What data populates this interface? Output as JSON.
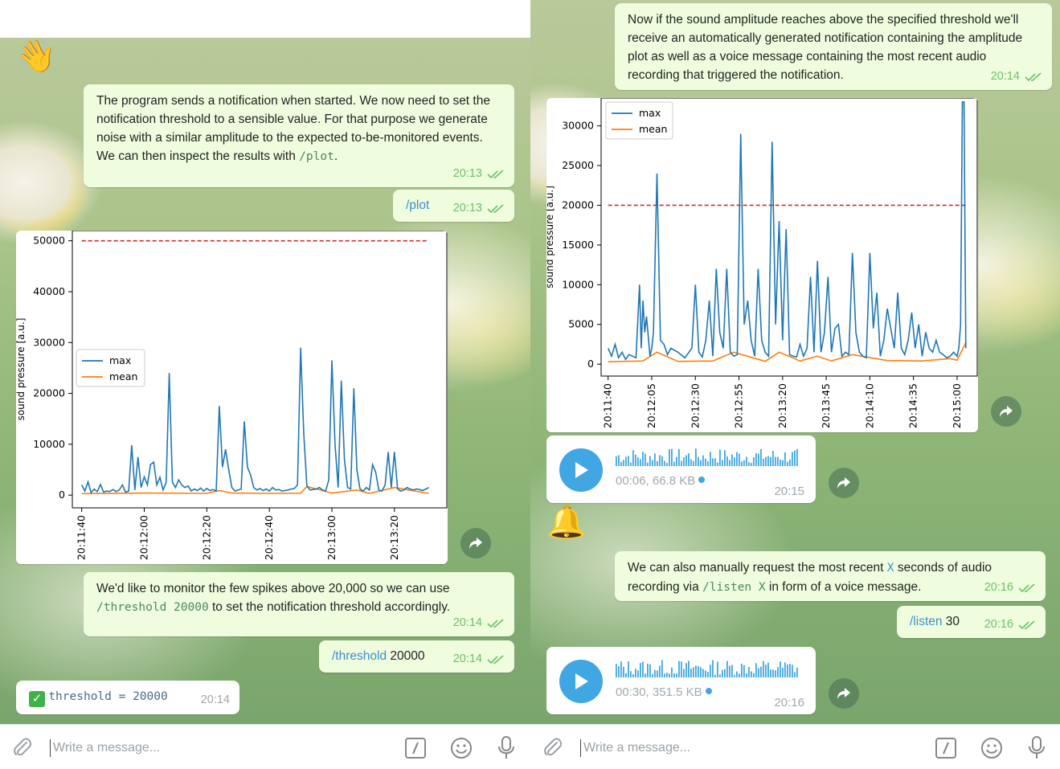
{
  "left": {
    "messages": {
      "m1_text": "The program sends a notification when started. We now need to set the notification threshold to a sensible value. For that purpose we generate noise with a similar amplitude to the expected to-be-monitored events. We can then inspect the results with ",
      "m1_cmd": "/plot",
      "m1_end": ".",
      "m1_time": "20:13",
      "m2_cmd": "/plot",
      "m2_time": "20:13",
      "m3_text": "We'd like to monitor the few spikes above 20,000 so we can use ",
      "m3_cmd": "/threshold 20000",
      "m3_end": " to set the notification threshold accordingly.",
      "m3_time": "20:14",
      "m4_cmd": "/threshold",
      "m4_arg": " 20000",
      "m4_time": "20:14",
      "m5_text": "threshold = 20000",
      "m5_time": "20:14"
    },
    "input_placeholder": "Write a message..."
  },
  "right": {
    "messages": {
      "m1_text": "Now if the sound amplitude reaches above the specified threshold we'll receive an automatically generated notification containing the amplitude plot as well as a voice message containing the most recent audio recording that triggered the notification.",
      "m1_time": "20:14",
      "voice1_info": "00:06, 66.8 KB",
      "voice1_time": "20:15",
      "m2_text_a": "We can also manually request the most recent ",
      "m2_x": "X",
      "m2_text_b": " seconds of audio recording via ",
      "m2_cmd": "/listen X",
      "m2_text_c": " in form of a voice message.",
      "m2_time": "20:16",
      "m3_cmd": "/listen",
      "m3_arg": " 30",
      "m3_time": "20:16",
      "voice2_info": "00:30, 351.5 KB",
      "voice2_time": "20:16"
    },
    "input_placeholder": "Write a message..."
  },
  "icons": [
    "waving-hand-icon",
    "bell-icon",
    "check-mark-icon",
    "share-icon",
    "play-icon",
    "attach-icon",
    "command-icon",
    "smile-icon",
    "mic-icon",
    "double-check-icon"
  ],
  "colors": {
    "outgoing_bubble": "#effdde",
    "time_green": "#6cbf6a",
    "link_blue": "#3a8fd0",
    "play_blue": "#40a7e3",
    "series_max": "#1f77b4",
    "series_mean": "#ff7f0e",
    "threshold": "#d62728"
  },
  "chart_data": [
    {
      "type": "line",
      "ylabel": "sound pressure [a.u.]",
      "ylim": [
        -2500,
        52000
      ],
      "yticks": [
        0,
        10000,
        20000,
        30000,
        40000,
        50000
      ],
      "ytick_labels": [
        "0",
        "10000",
        "20000",
        "30000",
        "40000",
        "50000"
      ],
      "xtick_labels": [
        "20:11:40",
        "20:12:00",
        "20:12:20",
        "20:12:40",
        "20:13:00",
        "20:13:20"
      ],
      "xlim_seconds": [
        -3,
        117
      ],
      "legend": {
        "position": "center-left",
        "entries": [
          "max",
          "mean"
        ]
      },
      "threshold_line": 50000,
      "series": [
        {
          "name": "max",
          "x": [
            0,
            1,
            2,
            3,
            4,
            5,
            6,
            7,
            8,
            9,
            10,
            11,
            12,
            13,
            14,
            15,
            16,
            17,
            18,
            19,
            20,
            21,
            22,
            23,
            24,
            25,
            26,
            27,
            28,
            29,
            30,
            31,
            32,
            33,
            34,
            35,
            36,
            37,
            38,
            39,
            40,
            41,
            42,
            43,
            44,
            45,
            46,
            47,
            48,
            49,
            50,
            51,
            52,
            53,
            54,
            55,
            56,
            57,
            58,
            59,
            60,
            61,
            62,
            63,
            64,
            65,
            66,
            67,
            68,
            69,
            70,
            71,
            72,
            73,
            74,
            75,
            76,
            77,
            78,
            79,
            80,
            81,
            82,
            83,
            84,
            85,
            86,
            87,
            88,
            89,
            90,
            91,
            92,
            93,
            94,
            95,
            96,
            97,
            98,
            99,
            100,
            101,
            102,
            103,
            104,
            105,
            106,
            107,
            108,
            109,
            110,
            111
          ],
          "y": [
            2000,
            800,
            2600,
            500,
            1200,
            700,
            2100,
            600,
            800,
            700,
            1100,
            700,
            1000,
            2000,
            600,
            800,
            9800,
            1000,
            7500,
            1500,
            3600,
            2000,
            6000,
            6500,
            2000,
            3500,
            1000,
            2500,
            24000,
            2500,
            1500,
            3000,
            2000,
            1500,
            1800,
            800,
            1200,
            900,
            1400,
            800,
            1300,
            900,
            1100,
            800,
            17500,
            5500,
            9000,
            5000,
            1500,
            800,
            1000,
            1200,
            14500,
            5500,
            4000,
            1500,
            1000,
            1300,
            900,
            1200,
            800,
            1500,
            1000,
            1100,
            800,
            900,
            1000,
            1200,
            1300,
            2000,
            29000,
            12000,
            1800,
            1000,
            1100,
            1200,
            1500,
            1000,
            800,
            3000,
            26500,
            10000,
            1500,
            22500,
            7000,
            1500,
            1200,
            21000,
            5000,
            1200,
            800,
            1500,
            1000,
            6000,
            4500,
            1000,
            800,
            2000,
            8500,
            1500,
            8500,
            1200,
            800,
            1000,
            1500,
            1200,
            1000,
            1200,
            1100,
            900,
            1200,
            1500
          ]
        },
        {
          "name": "mean",
          "x": [
            0,
            20,
            40,
            44,
            48,
            60,
            70,
            72,
            80,
            88,
            92,
            100,
            111
          ],
          "y": [
            300,
            400,
            350,
            900,
            400,
            350,
            380,
            1700,
            400,
            1000,
            350,
            1500,
            350
          ]
        }
      ]
    },
    {
      "type": "line",
      "ylabel": "sound pressure [a.u.]",
      "ylim": [
        -1500,
        33500
      ],
      "yticks": [
        0,
        5000,
        10000,
        15000,
        20000,
        25000,
        30000
      ],
      "ytick_labels": [
        "0",
        "5000",
        "10000",
        "15000",
        "20000",
        "25000",
        "30000"
      ],
      "xtick_labels": [
        "20:11:40",
        "20:12:05",
        "20:12:30",
        "20:12:55",
        "20:13:20",
        "20:13:45",
        "20:14:10",
        "20:14:35",
        "20:15:00"
      ],
      "xlim_seconds": [
        -4,
        212
      ],
      "legend": {
        "position": "upper-left",
        "entries": [
          "max",
          "mean"
        ]
      },
      "threshold_line": 20000,
      "series": [
        {
          "name": "max",
          "x": [
            0,
            2,
            4,
            6,
            8,
            10,
            12,
            14,
            16,
            18,
            19,
            20,
            21,
            22,
            24,
            25,
            26,
            28,
            30,
            32,
            34,
            36,
            40,
            44,
            48,
            50,
            52,
            54,
            56,
            58,
            60,
            62,
            64,
            66,
            68,
            70,
            72,
            74,
            76,
            78,
            80,
            82,
            84,
            86,
            88,
            90,
            92,
            94,
            96,
            98,
            100,
            102,
            104,
            106,
            108,
            110,
            112,
            114,
            116,
            118,
            120,
            122,
            124,
            126,
            128,
            130,
            132,
            134,
            136,
            138,
            140,
            142,
            144,
            146,
            148,
            150,
            152,
            154,
            156,
            158,
            160,
            162,
            164,
            166,
            168,
            170,
            172,
            174,
            176,
            178,
            180,
            182,
            184,
            186,
            188,
            190,
            192,
            194,
            196,
            198,
            200,
            201,
            202,
            203,
            204,
            205
          ],
          "y": [
            2000,
            1000,
            2500,
            800,
            1500,
            600,
            1200,
            1000,
            800,
            10000,
            2000,
            8000,
            4000,
            6000,
            1000,
            2000,
            4000,
            24000,
            3000,
            2500,
            1200,
            2000,
            1500,
            800,
            2000,
            10000,
            1500,
            900,
            3000,
            8000,
            1000,
            12000,
            4000,
            2000,
            12000,
            1500,
            1000,
            1200,
            29000,
            5000,
            8000,
            3000,
            1000,
            12000,
            3000,
            1500,
            1000,
            28000,
            5000,
            18000,
            3000,
            17000,
            1200,
            1000,
            900,
            2500,
            1000,
            2000,
            11000,
            1500,
            13000,
            1500,
            4000,
            11000,
            1500,
            4500,
            5000,
            1000,
            1500,
            1200,
            14000,
            4000,
            1500,
            1000,
            800,
            14000,
            4500,
            9000,
            1000,
            3000,
            7000,
            4500,
            2000,
            9000,
            2000,
            1200,
            3000,
            6500,
            2000,
            5000,
            1000,
            4000,
            2000,
            1500,
            3000,
            1500,
            1200,
            800,
            1000,
            1500,
            1000,
            2000,
            5000,
            33000,
            33000,
            2000
          ]
        },
        {
          "name": "mean",
          "x": [
            0,
            20,
            28,
            40,
            60,
            72,
            90,
            98,
            110,
            120,
            128,
            140,
            160,
            180,
            196,
            200,
            205
          ],
          "y": [
            300,
            400,
            1500,
            350,
            400,
            1500,
            350,
            1500,
            400,
            1000,
            400,
            1200,
            450,
            400,
            700,
            500,
            2700
          ]
        }
      ]
    }
  ]
}
